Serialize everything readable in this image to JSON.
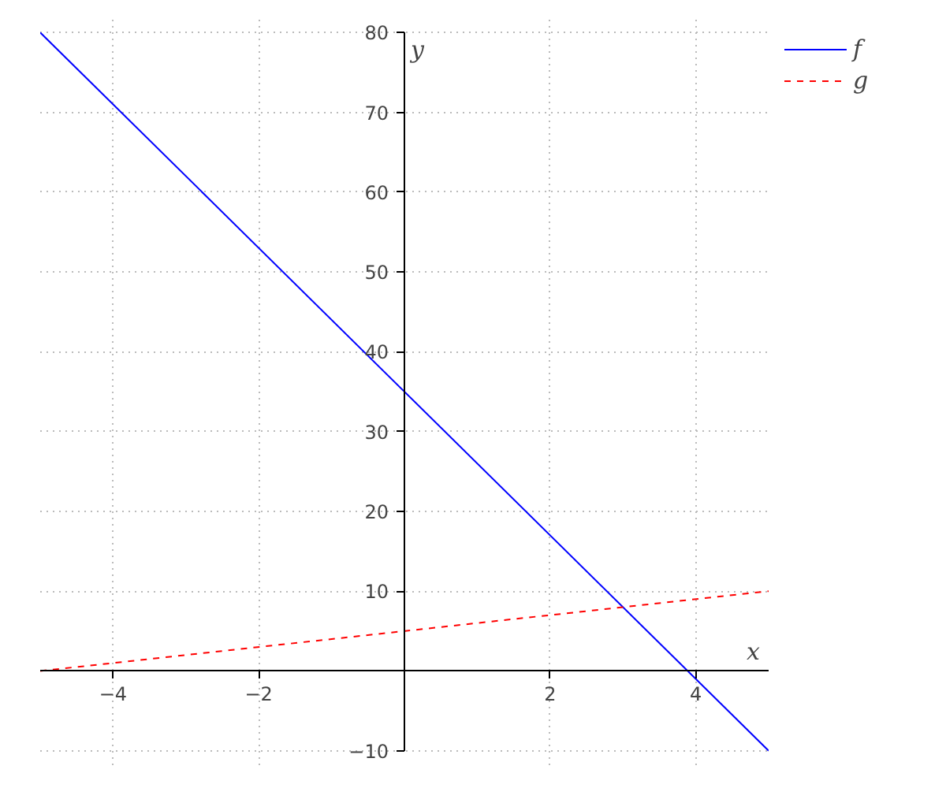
{
  "chart_data": {
    "type": "line",
    "xlabel": "x",
    "ylabel": "y",
    "x": [
      -5,
      5
    ],
    "series": [
      {
        "name": "f",
        "color": "#0000ff",
        "values": [
          80,
          -10
        ],
        "line_style": "solid"
      },
      {
        "name": "g",
        "color": "#ff0000",
        "values": [
          0,
          10
        ],
        "line_style": "dashed"
      }
    ],
    "xlim": [
      -5,
      5
    ],
    "ylim": [
      -10,
      80
    ],
    "xticks": [
      -4,
      -2,
      2,
      4
    ],
    "yticks": [
      -10,
      10,
      20,
      30,
      40,
      50,
      60,
      70,
      80
    ],
    "grid": true,
    "legend": "top right",
    "marker": "none"
  }
}
